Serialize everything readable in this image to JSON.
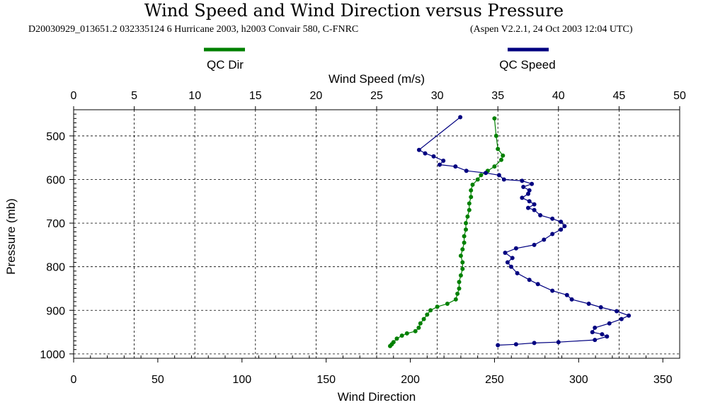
{
  "chart_data": {
    "type": "line",
    "title": "Wind Speed and Wind Direction versus Pressure",
    "subtitle_left": "D20030929_013651.2 032335124 6 Hurricane 2003, h2003 Convair 580, C-FNRC",
    "subtitle_right": "(Aspen V2.2.1, 24 Oct 2003  12:04 UTC)",
    "top_axis": {
      "label": "Wind Speed (m/s)",
      "range": [
        0,
        50
      ],
      "ticks": [
        "0",
        "5",
        "10",
        "15",
        "20",
        "25",
        "30",
        "35",
        "40",
        "45",
        "50"
      ]
    },
    "bottom_axis": {
      "label": "Wind Direction",
      "range": [
        0,
        360
      ],
      "ticks": [
        "0",
        "50",
        "100",
        "150",
        "200",
        "250",
        "300",
        "350"
      ]
    },
    "y_axis": {
      "label": "Pressure (mb)",
      "range": [
        440,
        1010
      ],
      "ticks": [
        "500",
        "600",
        "700",
        "800",
        "900",
        "1000"
      ]
    },
    "grid": true,
    "legend": [
      {
        "name": "QC Dir",
        "color": "#008000"
      },
      {
        "name": "QC Speed",
        "color": "#000080"
      }
    ],
    "series": [
      {
        "name": "QC Dir",
        "axis": "bottom",
        "color": "#008000",
        "points": [
          [
            250,
            460
          ],
          [
            251,
            500
          ],
          [
            252,
            530
          ],
          [
            255,
            545
          ],
          [
            254,
            555
          ],
          [
            250,
            570
          ],
          [
            246,
            580
          ],
          [
            242,
            590
          ],
          [
            240,
            600
          ],
          [
            237,
            612
          ],
          [
            236,
            625
          ],
          [
            236,
            640
          ],
          [
            235,
            655
          ],
          [
            235,
            670
          ],
          [
            234,
            685
          ],
          [
            233,
            700
          ],
          [
            233,
            715
          ],
          [
            232,
            730
          ],
          [
            232,
            745
          ],
          [
            231,
            760
          ],
          [
            230,
            775
          ],
          [
            231,
            790
          ],
          [
            231,
            805
          ],
          [
            230,
            820
          ],
          [
            229,
            835
          ],
          [
            229,
            850
          ],
          [
            228,
            862
          ],
          [
            227,
            875
          ],
          [
            222,
            885
          ],
          [
            216,
            892
          ],
          [
            212,
            900
          ],
          [
            210,
            910
          ],
          [
            208,
            920
          ],
          [
            206,
            930
          ],
          [
            205,
            940
          ],
          [
            203,
            948
          ],
          [
            198,
            953
          ],
          [
            195,
            958
          ],
          [
            192,
            965
          ],
          [
            190,
            973
          ],
          [
            189,
            978
          ],
          [
            188,
            982
          ]
        ]
      },
      {
        "name": "QC Speed",
        "axis": "top",
        "color": "#000080",
        "points": [
          [
            31.9,
            457
          ],
          [
            28.5,
            532
          ],
          [
            29.0,
            540
          ],
          [
            29.7,
            547
          ],
          [
            30.5,
            557
          ],
          [
            30.2,
            566
          ],
          [
            31.5,
            570
          ],
          [
            32.4,
            580
          ],
          [
            34.0,
            585
          ],
          [
            35.1,
            590
          ],
          [
            35.5,
            600
          ],
          [
            37.0,
            603
          ],
          [
            37.8,
            610
          ],
          [
            37.1,
            617
          ],
          [
            37.6,
            625
          ],
          [
            37.5,
            633
          ],
          [
            37.0,
            642
          ],
          [
            37.6,
            650
          ],
          [
            38.0,
            657
          ],
          [
            37.5,
            665
          ],
          [
            38.0,
            670
          ],
          [
            38.5,
            682
          ],
          [
            39.5,
            690
          ],
          [
            40.2,
            697
          ],
          [
            40.5,
            707
          ],
          [
            40.2,
            715
          ],
          [
            39.5,
            725
          ],
          [
            38.8,
            738
          ],
          [
            38.0,
            750
          ],
          [
            36.5,
            758
          ],
          [
            35.6,
            768
          ],
          [
            36.2,
            780
          ],
          [
            35.8,
            790
          ],
          [
            36.1,
            800
          ],
          [
            36.6,
            815
          ],
          [
            37.6,
            830
          ],
          [
            38.3,
            840
          ],
          [
            39.5,
            855
          ],
          [
            40.7,
            865
          ],
          [
            41.1,
            875
          ],
          [
            42.5,
            885
          ],
          [
            43.5,
            893
          ],
          [
            44.8,
            902
          ],
          [
            45.8,
            912
          ],
          [
            45.2,
            920
          ],
          [
            44.2,
            930
          ],
          [
            43.0,
            940
          ],
          [
            42.8,
            950
          ],
          [
            43.6,
            955
          ],
          [
            44.0,
            960
          ],
          [
            43.0,
            968
          ],
          [
            40.0,
            973
          ],
          [
            38.0,
            975
          ],
          [
            36.5,
            978
          ],
          [
            35.0,
            980
          ]
        ]
      }
    ]
  }
}
